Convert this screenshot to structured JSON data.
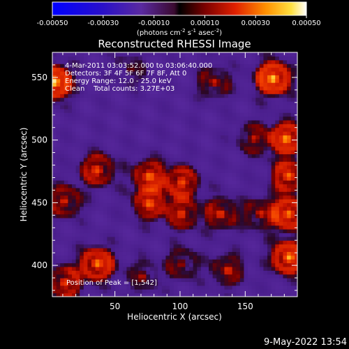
{
  "chart_data": {
    "type": "heatmap",
    "title": "Reconstructed RHESSI Image",
    "xlabel": "Heliocentric X (arcsec)",
    "ylabel": "Heliocentric Y (arcsec)",
    "xlim": [
      2,
      190
    ],
    "ylim": [
      375,
      570
    ],
    "x_ticks": [
      50,
      100,
      150
    ],
    "y_ticks": [
      400,
      450,
      500,
      550
    ],
    "colorbar": {
      "range": [
        -0.0005,
        0.0005
      ],
      "ticks": [
        "-0.00050",
        "-0.00030",
        "-0.00010",
        "0.00010",
        "0.00030",
        "0.00050"
      ],
      "unit_label_parts": [
        "(photons cm",
        "-2",
        " s",
        "-1",
        " asec",
        "-2",
        ")"
      ]
    },
    "annotations": [
      "4-Mar-2011 03:03:52.000 to 03:06:40.000",
      "Detectors: 3F 4F 5F 6F 7F 8F, Att 0",
      "Energy Range: 12.0 - 25.0 keV",
      "Clean    Total counts: 3.27E+03"
    ],
    "peak_label": "Position of Peak = [1,542]",
    "sources": [
      {
        "x": 2,
        "y": 545,
        "value": 0.00055
      },
      {
        "x": 170,
        "y": 548,
        "value": 0.0005
      },
      {
        "x": 180,
        "y": 500,
        "value": 0.0004
      },
      {
        "x": 182,
        "y": 470,
        "value": 0.00035
      },
      {
        "x": 182,
        "y": 440,
        "value": 0.0004
      },
      {
        "x": 182,
        "y": 405,
        "value": 0.00045
      },
      {
        "x": 35,
        "y": 475,
        "value": 0.0003
      },
      {
        "x": 10,
        "y": 450,
        "value": 0.00025
      },
      {
        "x": 35,
        "y": 400,
        "value": 0.0004
      },
      {
        "x": 10,
        "y": 385,
        "value": 0.0003
      },
      {
        "x": 75,
        "y": 470,
        "value": 0.00032
      },
      {
        "x": 75,
        "y": 448,
        "value": 0.0003
      },
      {
        "x": 100,
        "y": 465,
        "value": 0.0003
      },
      {
        "x": 100,
        "y": 440,
        "value": 0.00025
      },
      {
        "x": 130,
        "y": 440,
        "value": 0.00025
      },
      {
        "x": 160,
        "y": 440,
        "value": 0.0002
      },
      {
        "x": 135,
        "y": 395,
        "value": 0.00022
      },
      {
        "x": 100,
        "y": 400,
        "value": 0.00018
      },
      {
        "x": 70,
        "y": 390,
        "value": 0.00015
      },
      {
        "x": 125,
        "y": 545,
        "value": 0.0002
      },
      {
        "x": 60,
        "y": 555,
        "value": 0.00012
      },
      {
        "x": 155,
        "y": 500,
        "value": 0.00018
      }
    ],
    "background_level": -8e-05
  },
  "footer": {
    "timestamp": "9-May-2022 13:54"
  },
  "colors": {
    "background": "#000000",
    "text": "#ffffff"
  }
}
